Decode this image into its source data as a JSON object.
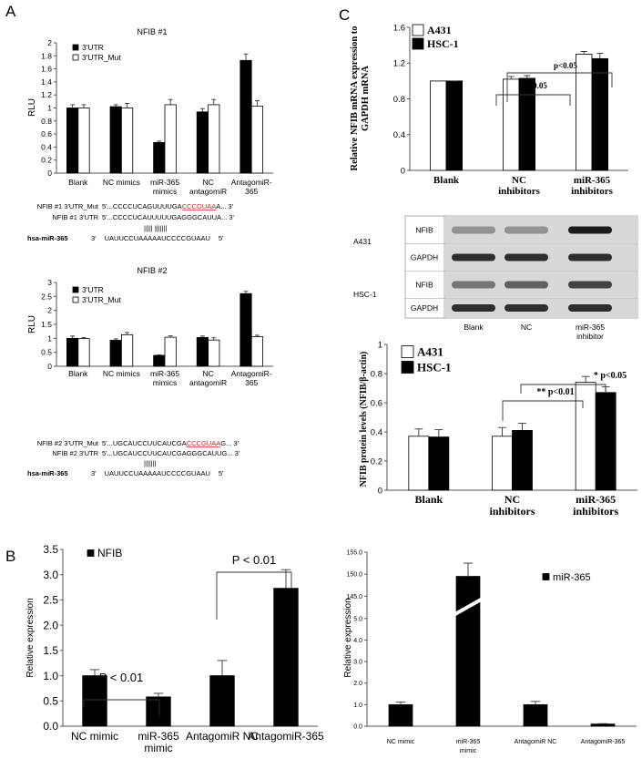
{
  "panel_labels": [
    "A",
    "B",
    "C"
  ],
  "chart_data": [
    {
      "type": "bar",
      "title": "NFIB #1",
      "ylabel": "RLU",
      "categories": [
        "Blank",
        "NC mimics",
        "miR-365\nmimics",
        "NC\nantagomiR",
        "AntagomiR-\n365"
      ],
      "series": [
        {
          "name": "3'UTR",
          "color": "#000000",
          "values": [
            1.0,
            1.02,
            0.47,
            0.94,
            1.73
          ],
          "errors": [
            0.05,
            0.03,
            0.02,
            0.05,
            0.1
          ]
        },
        {
          "name": "3'UTR_Mut",
          "color": "#ffffff",
          "values": [
            1.0,
            1.0,
            1.05,
            1.05,
            1.03
          ],
          "errors": [
            0.05,
            0.07,
            0.08,
            0.08,
            0.08
          ]
        }
      ],
      "ylim": [
        0,
        2
      ],
      "yticks": [
        0,
        0.2,
        0.4,
        0.6,
        0.8,
        1,
        1.2,
        1.4,
        1.6,
        1.8,
        2
      ],
      "legend": "upper left"
    },
    {
      "type": "bar",
      "title": "NFIB #2",
      "ylabel": "RLU",
      "categories": [
        "Blank",
        "NC mimics",
        "miR-365\nmimics",
        "NC\nantagomiR",
        "AntagomiR-\n365"
      ],
      "series": [
        {
          "name": "3'UTR",
          "color": "#000000",
          "values": [
            1.0,
            0.93,
            0.39,
            1.03,
            2.6
          ],
          "errors": [
            0.08,
            0.05,
            0.02,
            0.05,
            0.08
          ]
        },
        {
          "name": "3'UTR_Mut",
          "color": "#ffffff",
          "values": [
            0.99,
            1.13,
            1.04,
            0.94,
            1.06
          ],
          "errors": [
            0.04,
            0.08,
            0.05,
            0.08,
            0.05
          ]
        }
      ],
      "ylim": [
        0,
        3
      ],
      "yticks": [
        0,
        0.5,
        1,
        1.5,
        2,
        2.5,
        3
      ],
      "legend": "upper left"
    },
    {
      "type": "bar",
      "ylabel": "Relative expression",
      "categories": [
        "NC mimic",
        "miR-365\nmimic",
        "AntagomiR NC",
        "AntagomiR-365"
      ],
      "series": [
        {
          "name": "NFIB",
          "color": "#000000",
          "values": [
            1.0,
            0.58,
            1.0,
            2.73
          ],
          "errors": [
            0.12,
            0.07,
            0.3,
            0.37
          ]
        }
      ],
      "ylim": [
        0,
        3.5
      ],
      "yticks": [
        {
          "value": 0,
          "label": "0.0"
        },
        {
          "value": 0.5,
          "label": "0.5"
        },
        {
          "value": 1,
          "label": "1.0"
        },
        {
          "value": 1.5,
          "label": "1.5"
        },
        {
          "value": 2,
          "label": "2.0"
        },
        {
          "value": 2.5,
          "label": "2.5"
        },
        {
          "value": 3,
          "label": "3.0"
        },
        {
          "value": 3.5,
          "label": "3.5"
        }
      ],
      "annotations": [
        "P < 0.01",
        "P < 0.01"
      ],
      "legend": "upper left"
    },
    {
      "type": "bar",
      "ylabel": "Relative expression",
      "categories": [
        "NC mimic",
        "miR-365\nmimic",
        "AntagomiR NC",
        "AntagomiR-365"
      ],
      "series": [
        {
          "name": "miR-365",
          "color": "#000000",
          "values": [
            1.0,
            149.5,
            1.0,
            0.1
          ],
          "errors": [
            0.12,
            3,
            0.15,
            0.02
          ]
        }
      ],
      "ylim": [
        0,
        155
      ],
      "ybreak": [
        5.5,
        143
      ],
      "yticks": [
        {
          "value": 0,
          "label": "0.0"
        },
        {
          "value": 1,
          "label": "1.0"
        },
        {
          "value": 2,
          "label": "2.0"
        },
        {
          "value": 3,
          "label": "3.0"
        },
        {
          "value": 4,
          "label": "4.0"
        },
        {
          "value": 5,
          "label": "5.0"
        },
        {
          "value": 145,
          "label": "145.0"
        },
        {
          "value": 150,
          "label": "150.0"
        },
        {
          "value": 155,
          "label": "155.0"
        }
      ],
      "legend": "upper right"
    },
    {
      "type": "bar",
      "ylabel": "Relative NFIB mRNA expression to\nGAPDH mRNA",
      "categories": [
        "Blank",
        "NC\ninhibitors",
        "miR-365\ninhibitors"
      ],
      "series": [
        {
          "name": "A431",
          "color": "#ffffff",
          "values": [
            1.0,
            1.02,
            1.3
          ],
          "errors": [
            0,
            0.03,
            0.03
          ]
        },
        {
          "name": "HSC-1",
          "color": "#000000",
          "values": [
            1.0,
            1.03,
            1.25
          ],
          "errors": [
            0,
            0.03,
            0.06
          ]
        }
      ],
      "ylim": [
        0,
        1.6
      ],
      "yticks": [
        0,
        0.4,
        0.8,
        1.2,
        1.6
      ],
      "annotations": [
        "p<0.05",
        "p<0.05"
      ],
      "legend": "upper left"
    },
    {
      "type": "bar",
      "ylabel": "NFIB protein levels (NFIB/β-actin)",
      "categories": [
        "Blank",
        "NC\ninhibitors",
        "miR-365\ninhibitors"
      ],
      "series": [
        {
          "name": "A431",
          "color": "#ffffff",
          "values": [
            0.37,
            0.37,
            0.74
          ],
          "errors": [
            0.05,
            0.06,
            0.04
          ]
        },
        {
          "name": "HSC-1",
          "color": "#000000",
          "values": [
            0.365,
            0.41,
            0.67
          ],
          "errors": [
            0.05,
            0.05,
            0.04
          ]
        }
      ],
      "ylim": [
        0,
        1
      ],
      "yticks": [
        0,
        0.2,
        0.4,
        0.6,
        0.8,
        1
      ],
      "annotations": [
        "* p<0.05",
        "** p<0.01"
      ],
      "legend": "upper left"
    }
  ],
  "sequences": [
    {
      "highlight_color": "#d42020",
      "rows": [
        {
          "label": "NFIB #1 3'UTR_Mut",
          "parts": [
            "5'...CCCCUCAGUUUUGA",
            "CCCGUAA",
            "A... 3'"
          ],
          "highlight_part": 1
        },
        {
          "label": "NFIB #1 3'UTR",
          "parts": [
            "5'...CCCCUCAUUUUUGAGGGCAUUA... 3'"
          ]
        },
        {
          "parts": [
            "||||| |||||||"
          ]
        },
        {
          "label": "hsa-miR-365",
          "parts": [
            "3'",
            "UAUUCCUAAAAAUCCCCGUAAU",
            "5'"
          ]
        }
      ]
    },
    {
      "highlight_color": "#d42020",
      "rows": [
        {
          "label": "NFIB #2 3'UTR_Mut",
          "parts": [
            "5'...UGCAUCCUUCAUCGA",
            "CCCGUAA",
            "G... 3'"
          ],
          "highlight_part": 1
        },
        {
          "label": "NFIB #2 3'UTR",
          "parts": [
            "5'...UGCAUCCUUCAUCGAGGGCAUUG... 3'"
          ]
        },
        {
          "parts": [
            "|||||||"
          ]
        },
        {
          "label": "hsa-miR-365",
          "parts": [
            "3'",
            "UAUUCCUAAAAAUCCCCGUAAU",
            "5'"
          ]
        }
      ]
    }
  ],
  "blot": {
    "cell_lines": [
      "A431",
      "HSC-1"
    ],
    "rows": [
      "NFIB",
      "GAPDH",
      "NFIB",
      "GAPDH"
    ],
    "lanes": [
      "Blank",
      "NC",
      "miR-365\ninhibitor"
    ]
  }
}
